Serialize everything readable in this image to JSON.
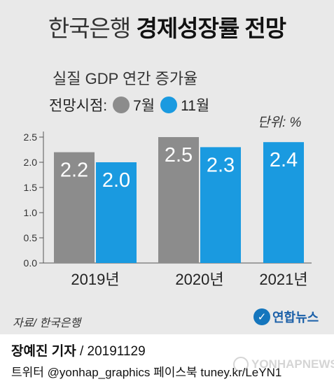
{
  "title": {
    "part1": "한국은행",
    "part2": "경제성장률 전망"
  },
  "subtitle": "실질 GDP 연간 증가율",
  "legend": {
    "label": "전망시점:",
    "items": [
      "7월",
      "11월"
    ]
  },
  "unit": "단위: %",
  "colors": {
    "jul": "#8c8c8c",
    "nov": "#1a9ae0",
    "background": "#e9e9e9"
  },
  "chart_data": {
    "type": "bar",
    "categories": [
      "2019년",
      "2020년",
      "2021년"
    ],
    "series": [
      {
        "name": "7월",
        "values": [
          2.2,
          2.5,
          null
        ]
      },
      {
        "name": "11월",
        "values": [
          2.0,
          2.3,
          2.4
        ]
      }
    ],
    "value_labels": [
      [
        "2.2",
        "2.5",
        ""
      ],
      [
        "2.0",
        "2.3",
        "2.4"
      ]
    ],
    "yticks": [
      "0.0",
      "0.5",
      "1.0",
      "1.5",
      "2.0",
      "2.5"
    ],
    "ylim": [
      0,
      2.5
    ],
    "grid": false,
    "legend_position": "top-left"
  },
  "source": "자료/ 한국은행",
  "logo_text": "연합뉴스",
  "credit": {
    "name": "장예진 기자",
    "date": " / 20191129"
  },
  "social": "트위터 @yonhap_graphics  페이스북 tuney.kr/LeYN1",
  "watermark": "YONHAPNEWS"
}
